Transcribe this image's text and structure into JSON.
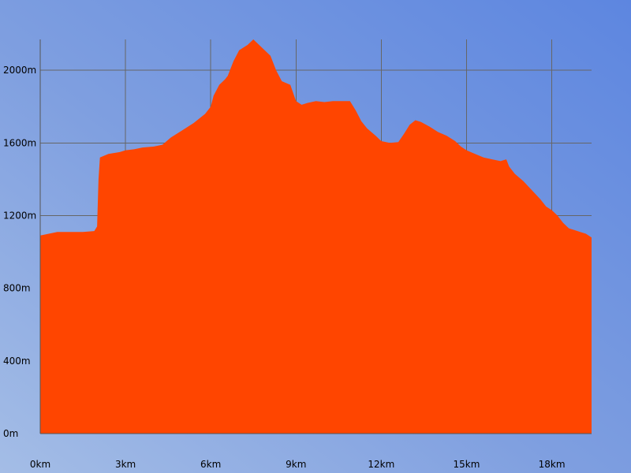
{
  "chart_data": {
    "type": "area",
    "title": "",
    "xlabel": "",
    "ylabel": "",
    "x_unit": "km",
    "y_unit": "m",
    "xlim": [
      0,
      19.4
    ],
    "ylim": [
      0,
      2170
    ],
    "x_ticks": [
      0,
      3,
      6,
      9,
      12,
      15,
      18
    ],
    "x_tick_labels": [
      "0km",
      "3km",
      "6km",
      "9km",
      "12km",
      "15km",
      "18km"
    ],
    "y_ticks": [
      0,
      400,
      800,
      1200,
      1600,
      2000
    ],
    "y_tick_labels": [
      "0m",
      "400m",
      "800m",
      "1200m",
      "1600m",
      "2000m"
    ],
    "grid": true,
    "legend": "none",
    "colors": {
      "fill": "#ff4500",
      "grid": "#666666"
    },
    "series": [
      {
        "x": [
          0,
          0.3,
          0.6,
          1.0,
          1.5,
          1.9,
          2.0,
          2.05,
          2.1,
          2.4,
          2.8,
          3.0,
          3.3,
          3.6,
          4.0,
          4.3,
          4.6,
          5.0,
          5.4,
          5.8,
          6.0,
          6.1,
          6.3,
          6.5,
          6.6,
          6.8,
          7.0,
          7.3,
          7.5,
          7.7,
          7.9,
          8.1,
          8.3,
          8.5,
          8.8,
          9.0,
          9.2,
          9.4,
          9.7,
          10.0,
          10.3,
          10.6,
          10.9,
          11.1,
          11.3,
          11.5,
          11.8,
          12.0,
          12.3,
          12.6,
          12.8,
          13.0,
          13.2,
          13.4,
          13.7,
          14.0,
          14.3,
          14.6,
          14.8,
          15.0,
          15.3,
          15.6,
          15.9,
          16.2,
          16.4,
          16.5,
          16.7,
          17.0,
          17.3,
          17.6,
          17.8,
          18.0,
          18.2,
          18.4,
          18.6,
          18.8,
          19.0,
          19.2,
          19.4
        ],
        "y": [
          1090,
          1100,
          1110,
          1110,
          1110,
          1115,
          1140,
          1400,
          1520,
          1540,
          1550,
          1560,
          1565,
          1575,
          1580,
          1590,
          1630,
          1670,
          1710,
          1760,
          1800,
          1860,
          1920,
          1950,
          1970,
          2050,
          2110,
          2140,
          2170,
          2140,
          2110,
          2080,
          2000,
          1940,
          1920,
          1830,
          1810,
          1820,
          1830,
          1825,
          1830,
          1830,
          1830,
          1780,
          1720,
          1680,
          1640,
          1610,
          1600,
          1605,
          1650,
          1700,
          1725,
          1715,
          1690,
          1660,
          1640,
          1610,
          1580,
          1560,
          1540,
          1520,
          1510,
          1500,
          1510,
          1470,
          1430,
          1390,
          1340,
          1290,
          1250,
          1230,
          1200,
          1160,
          1130,
          1120,
          1110,
          1100,
          1080
        ]
      }
    ]
  }
}
